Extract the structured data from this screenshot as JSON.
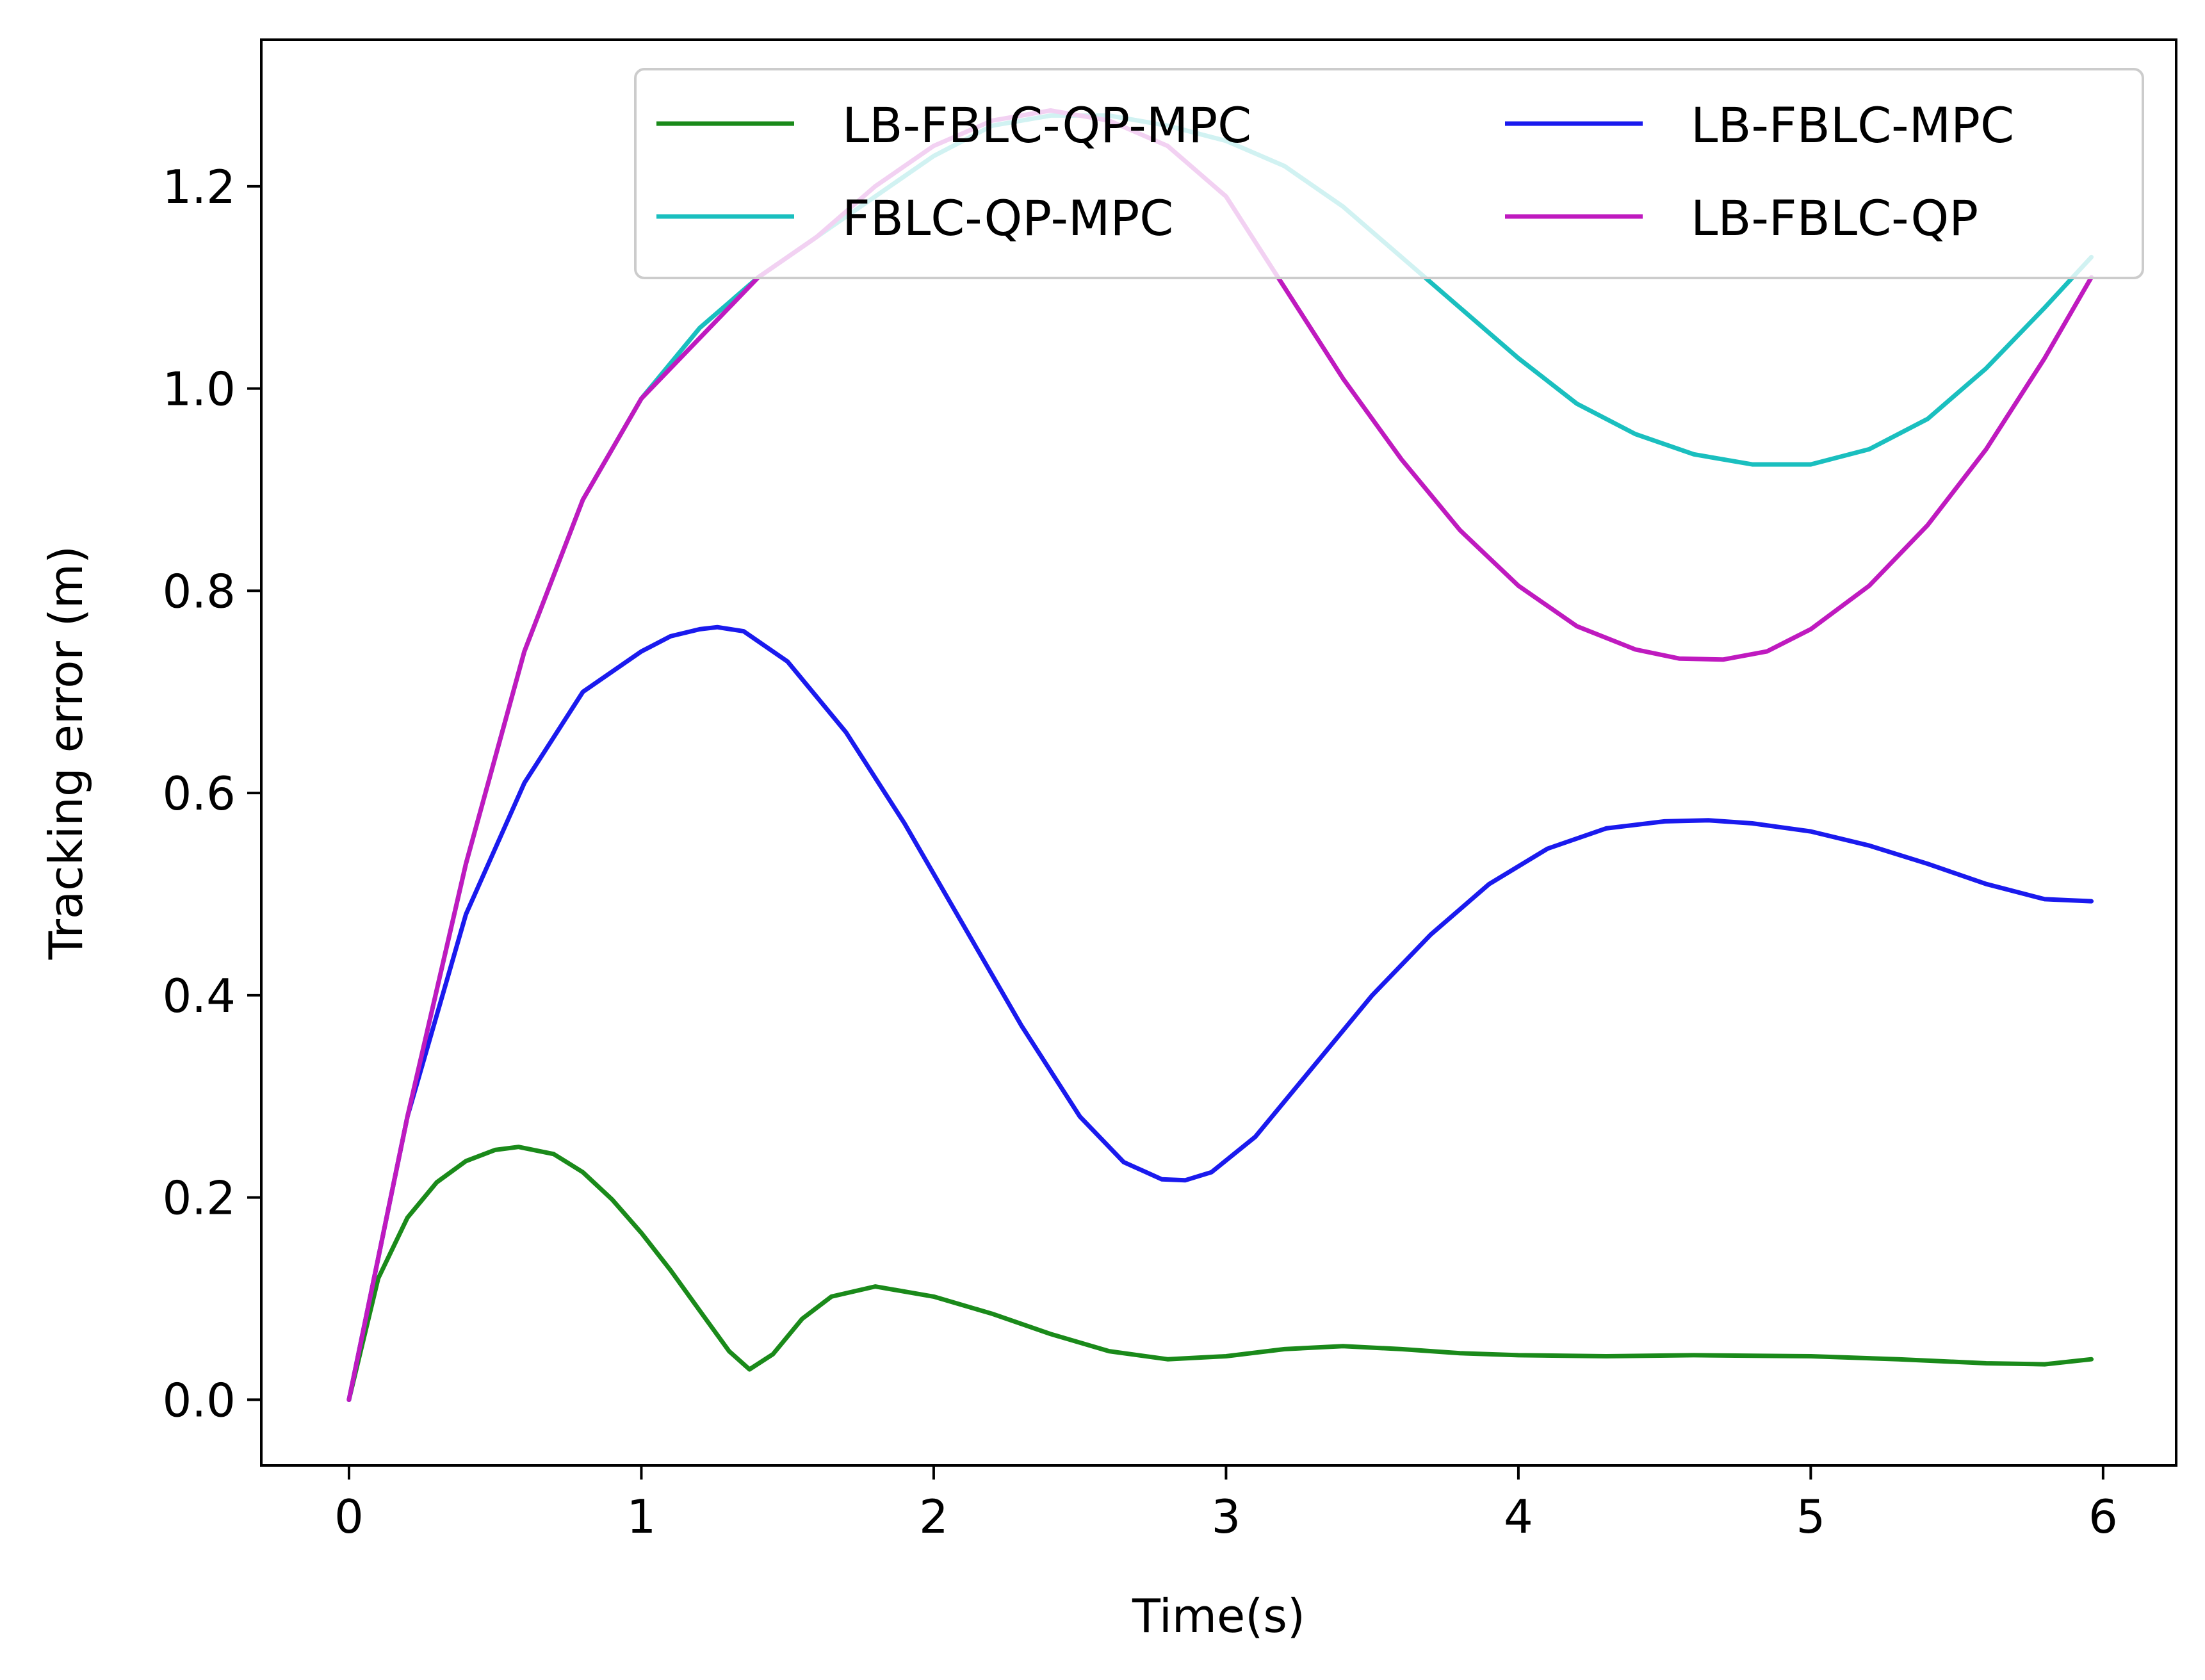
{
  "chart_data": {
    "type": "line",
    "title": "",
    "xlabel": "Time(s)",
    "ylabel": "Tracking error (m)",
    "xlim": [
      -0.3,
      6.25
    ],
    "ylim": [
      -0.065,
      1.345
    ],
    "xticks": [
      0,
      1,
      2,
      3,
      4,
      5,
      6
    ],
    "yticks": [
      0.0,
      0.2,
      0.4,
      0.6,
      0.8,
      1.0,
      1.2
    ],
    "xtick_labels": [
      "0",
      "1",
      "2",
      "3",
      "4",
      "5",
      "6"
    ],
    "ytick_labels": [
      "0.0",
      "0.2",
      "0.4",
      "0.6",
      "0.8",
      "1.0",
      "1.2"
    ],
    "grid": false,
    "legend": {
      "placement": "top-right",
      "columns": 2
    },
    "series": [
      {
        "name": "LB-FBLC-QP-MPC",
        "color": "#1a8a1a",
        "x": [
          0,
          0.1,
          0.2,
          0.3,
          0.4,
          0.5,
          0.58,
          0.7,
          0.8,
          0.9,
          1.0,
          1.1,
          1.2,
          1.3,
          1.37,
          1.45,
          1.55,
          1.65,
          1.8,
          2.0,
          2.2,
          2.4,
          2.6,
          2.8,
          3.0,
          3.2,
          3.4,
          3.6,
          3.8,
          4.0,
          4.3,
          4.6,
          5.0,
          5.3,
          5.6,
          5.8,
          5.96
        ],
        "y": [
          0.0,
          0.12,
          0.18,
          0.215,
          0.236,
          0.247,
          0.25,
          0.243,
          0.225,
          0.198,
          0.165,
          0.128,
          0.088,
          0.048,
          0.03,
          0.045,
          0.08,
          0.102,
          0.112,
          0.102,
          0.085,
          0.065,
          0.048,
          0.04,
          0.043,
          0.05,
          0.053,
          0.05,
          0.046,
          0.044,
          0.043,
          0.044,
          0.043,
          0.04,
          0.036,
          0.035,
          0.04
        ]
      },
      {
        "name": "FBLC-QP-MPC",
        "color": "#1abfbf",
        "x": [
          0,
          0.2,
          0.4,
          0.6,
          0.8,
          1.0,
          1.2,
          1.4,
          1.6,
          1.8,
          2.0,
          2.2,
          2.4,
          2.6,
          2.8,
          3.0,
          3.2,
          3.4,
          3.6,
          3.8,
          4.0,
          4.2,
          4.4,
          4.6,
          4.8,
          5.0,
          5.2,
          5.4,
          5.6,
          5.8,
          5.96
        ],
        "y": [
          0.0,
          0.28,
          0.53,
          0.74,
          0.89,
          0.99,
          1.06,
          1.11,
          1.15,
          1.19,
          1.23,
          1.26,
          1.27,
          1.27,
          1.26,
          1.245,
          1.22,
          1.18,
          1.13,
          1.08,
          1.03,
          0.985,
          0.955,
          0.935,
          0.925,
          0.925,
          0.94,
          0.97,
          1.02,
          1.08,
          1.13
        ]
      },
      {
        "name": "LB-FBLC-MPC",
        "color": "#1a1aee",
        "x": [
          0,
          0.2,
          0.4,
          0.6,
          0.8,
          1.0,
          1.1,
          1.2,
          1.26,
          1.35,
          1.5,
          1.7,
          1.9,
          2.1,
          2.3,
          2.5,
          2.65,
          2.78,
          2.86,
          2.95,
          3.1,
          3.3,
          3.5,
          3.7,
          3.9,
          4.1,
          4.3,
          4.5,
          4.65,
          4.8,
          5.0,
          5.2,
          5.4,
          5.6,
          5.8,
          5.96
        ],
        "y": [
          0.0,
          0.28,
          0.48,
          0.61,
          0.7,
          0.74,
          0.755,
          0.762,
          0.764,
          0.76,
          0.73,
          0.66,
          0.57,
          0.47,
          0.37,
          0.28,
          0.235,
          0.218,
          0.217,
          0.225,
          0.26,
          0.33,
          0.4,
          0.46,
          0.51,
          0.545,
          0.565,
          0.572,
          0.573,
          0.57,
          0.562,
          0.548,
          0.53,
          0.51,
          0.495,
          0.493
        ]
      },
      {
        "name": "LB-FBLC-QP",
        "color": "#bf1abf",
        "x": [
          0,
          0.2,
          0.4,
          0.6,
          0.8,
          1.0,
          1.2,
          1.4,
          1.6,
          1.8,
          2.0,
          2.2,
          2.4,
          2.6,
          2.8,
          3.0,
          3.2,
          3.4,
          3.6,
          3.8,
          4.0,
          4.2,
          4.4,
          4.55,
          4.7,
          4.85,
          5.0,
          5.2,
          5.4,
          5.6,
          5.8,
          5.96
        ],
        "y": [
          0.0,
          0.28,
          0.53,
          0.74,
          0.89,
          0.99,
          1.05,
          1.11,
          1.15,
          1.2,
          1.24,
          1.265,
          1.275,
          1.265,
          1.24,
          1.19,
          1.1,
          1.01,
          0.93,
          0.86,
          0.805,
          0.765,
          0.742,
          0.733,
          0.732,
          0.74,
          0.762,
          0.805,
          0.865,
          0.94,
          1.03,
          1.11
        ]
      }
    ]
  }
}
